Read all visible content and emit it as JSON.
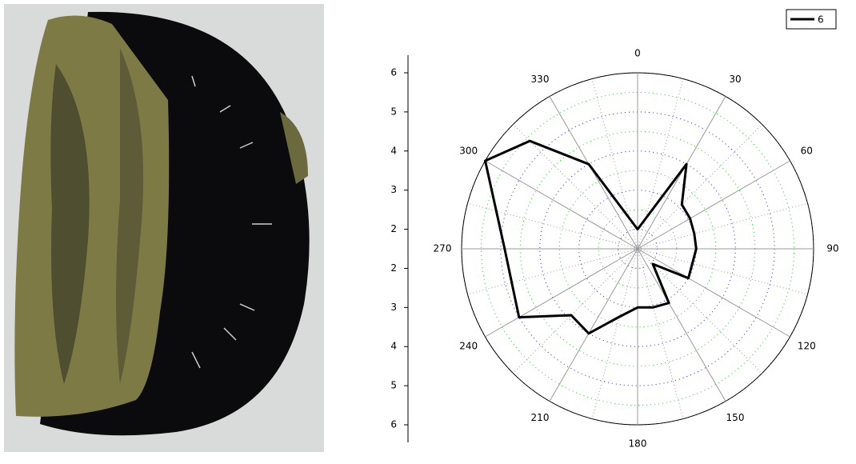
{
  "chart_data": {
    "type": "polar",
    "x": [
      0,
      30,
      45,
      60,
      75,
      90,
      120,
      135,
      150,
      165,
      180,
      195,
      210,
      225,
      240,
      270,
      300,
      315,
      330
    ],
    "series": [
      {
        "name": "6",
        "color": "#000000",
        "values": [
          2.0,
          4.0,
          3.1,
          3.05,
          3.0,
          3.0,
          3.0,
          2.05,
          3.1,
          3.05,
          3.0,
          3.3,
          4.0,
          3.9,
          5.0,
          4.9,
          6.0,
          5.4,
          4.0
        ]
      }
    ],
    "xticks": [
      0,
      30,
      60,
      90,
      120,
      150,
      180,
      210,
      240,
      270,
      300,
      330
    ],
    "ylim": [
      1.5,
      6
    ],
    "yticks": [
      2,
      3,
      4,
      5,
      6
    ],
    "grid": true,
    "legend": "upper right"
  }
}
